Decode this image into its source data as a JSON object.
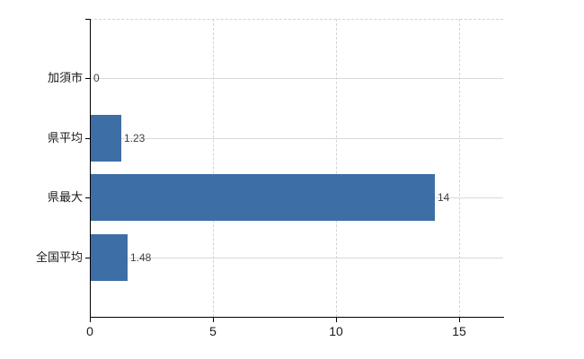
{
  "chart": {
    "background": "#ffffff",
    "bar_color": "#3d6ea6",
    "axis_color": "#000000",
    "h_gridline_color": "#d9d9d9",
    "v_gridline_color": "#d3d3d3",
    "category_label_color": "#1a1a1a",
    "value_label_color": "#404040"
  },
  "chart_data": {
    "type": "bar",
    "orientation": "horizontal",
    "title": "",
    "categories": [
      "加須市",
      "県平均",
      "県最大",
      "全国平均"
    ],
    "values": [
      0,
      1.23,
      14,
      1.48
    ],
    "value_labels": [
      "0",
      "1.23",
      "14",
      "1.48"
    ],
    "x_tick_labels": [
      "0",
      "5",
      "10",
      "15"
    ],
    "x_tick_values": [
      0,
      5,
      10,
      15
    ],
    "xlim": [
      0,
      16.8
    ],
    "xlabel": "",
    "ylabel": "",
    "legend": "none",
    "grid": {
      "horizontal": "solid",
      "vertical": "dashed",
      "top_border": "dashed"
    }
  }
}
